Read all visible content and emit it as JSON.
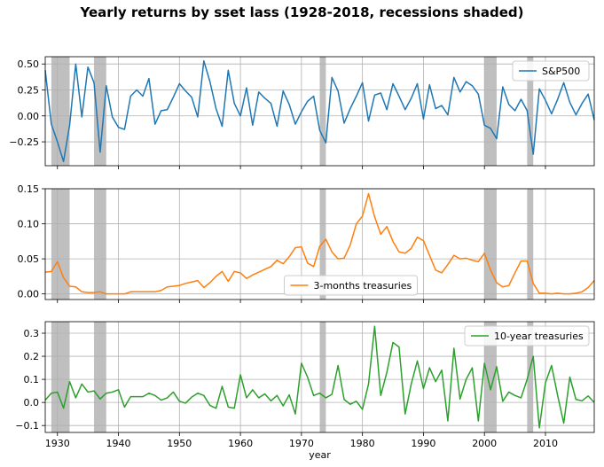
{
  "title": "Yearly returns by sset lass (1928-2018, recessions shaded)",
  "chart_data": {
    "type": "line",
    "title": "Yearly returns by sset lass (1928-2018, recessions shaded)",
    "xlabel": "year",
    "xlim": [
      1928,
      2018
    ],
    "x_ticks": [
      1930,
      1940,
      1950,
      1960,
      1970,
      1980,
      1990,
      2000,
      2010
    ],
    "grid": true,
    "recessions": [
      [
        1929,
        1932
      ],
      [
        1936,
        1938
      ],
      [
        1973,
        1974
      ],
      [
        2000,
        2002
      ],
      [
        2007,
        2008
      ]
    ],
    "recession_color": "#bfbfbf",
    "x": [
      1928,
      1929,
      1930,
      1931,
      1932,
      1933,
      1934,
      1935,
      1936,
      1937,
      1938,
      1939,
      1940,
      1941,
      1942,
      1943,
      1944,
      1945,
      1946,
      1947,
      1948,
      1949,
      1950,
      1951,
      1952,
      1953,
      1954,
      1955,
      1956,
      1957,
      1958,
      1959,
      1960,
      1961,
      1962,
      1963,
      1964,
      1965,
      1966,
      1967,
      1968,
      1969,
      1970,
      1971,
      1972,
      1973,
      1974,
      1975,
      1976,
      1977,
      1978,
      1979,
      1980,
      1981,
      1982,
      1983,
      1984,
      1985,
      1986,
      1987,
      1988,
      1989,
      1990,
      1991,
      1992,
      1993,
      1994,
      1995,
      1996,
      1997,
      1998,
      1999,
      2000,
      2001,
      2002,
      2003,
      2004,
      2005,
      2006,
      2007,
      2008,
      2009,
      2010,
      2011,
      2012,
      2013,
      2014,
      2015,
      2016,
      2017,
      2018
    ],
    "panels": [
      {
        "series": [
          {
            "name": "S&P500",
            "color": "#1f77b4",
            "values": [
              0.44,
              -0.08,
              -0.25,
              -0.44,
              -0.09,
              0.5,
              -0.01,
              0.47,
              0.32,
              -0.35,
              0.29,
              -0.01,
              -0.11,
              -0.13,
              0.19,
              0.25,
              0.19,
              0.36,
              -0.08,
              0.05,
              0.06,
              0.18,
              0.31,
              0.24,
              0.18,
              -0.01,
              0.53,
              0.33,
              0.07,
              -0.1,
              0.44,
              0.12,
              0.0,
              0.27,
              -0.09,
              0.23,
              0.17,
              0.12,
              -0.1,
              0.24,
              0.11,
              -0.08,
              0.04,
              0.14,
              0.19,
              -0.14,
              -0.26,
              0.37,
              0.24,
              -0.07,
              0.07,
              0.19,
              0.32,
              -0.05,
              0.2,
              0.22,
              0.06,
              0.31,
              0.19,
              0.06,
              0.17,
              0.31,
              -0.03,
              0.3,
              0.07,
              0.1,
              0.01,
              0.37,
              0.23,
              0.33,
              0.29,
              0.21,
              -0.09,
              -0.12,
              -0.22,
              0.28,
              0.11,
              0.05,
              0.16,
              0.05,
              -0.37,
              0.26,
              0.15,
              0.02,
              0.16,
              0.32,
              0.13,
              0.01,
              0.12,
              0.21,
              -0.04
            ]
          }
        ],
        "ylim": [
          -0.48,
          0.57
        ],
        "y_ticks": [
          -0.25,
          0.0,
          0.25,
          0.5
        ],
        "y_tick_labels": [
          "−0.25",
          "0.00",
          "0.25",
          "0.50"
        ],
        "legend_position": "top-right"
      },
      {
        "series": [
          {
            "name": "3-months treasuries",
            "color": "#ff7f0e",
            "values": [
              0.031,
              0.032,
              0.046,
              0.023,
              0.011,
              0.01,
              0.003,
              0.002,
              0.002,
              0.003,
              0.0,
              0.0,
              0.0,
              0.0,
              0.003,
              0.003,
              0.003,
              0.003,
              0.003,
              0.005,
              0.01,
              0.011,
              0.012,
              0.015,
              0.017,
              0.019,
              0.009,
              0.016,
              0.025,
              0.032,
              0.018,
              0.032,
              0.03,
              0.022,
              0.027,
              0.031,
              0.035,
              0.039,
              0.048,
              0.043,
              0.053,
              0.066,
              0.067,
              0.044,
              0.039,
              0.068,
              0.078,
              0.06,
              0.05,
              0.051,
              0.07,
              0.1,
              0.111,
              0.143,
              0.11,
              0.085,
              0.096,
              0.075,
              0.06,
              0.058,
              0.065,
              0.081,
              0.076,
              0.055,
              0.034,
              0.03,
              0.042,
              0.055,
              0.05,
              0.051,
              0.048,
              0.046,
              0.058,
              0.034,
              0.016,
              0.01,
              0.012,
              0.03,
              0.047,
              0.047,
              0.015,
              0.001,
              0.001,
              0.0,
              0.001,
              0.0,
              0.0,
              0.001,
              0.003,
              0.009,
              0.019
            ]
          }
        ],
        "ylim": [
          -0.008,
          0.15
        ],
        "y_ticks": [
          0.0,
          0.05,
          0.1,
          0.15
        ],
        "y_tick_labels": [
          "0.00",
          "0.05",
          "0.10",
          "0.15"
        ],
        "legend_position": "bottom-center"
      },
      {
        "series": [
          {
            "name": "10-year treasuries",
            "color": "#2ca02c",
            "values": [
              0.01,
              0.04,
              0.045,
              -0.025,
              0.09,
              0.02,
              0.08,
              0.045,
              0.05,
              0.015,
              0.04,
              0.045,
              0.055,
              -0.02,
              0.025,
              0.025,
              0.025,
              0.04,
              0.03,
              0.01,
              0.02,
              0.045,
              0.005,
              -0.003,
              0.023,
              0.04,
              0.03,
              -0.013,
              -0.025,
              0.07,
              -0.02,
              -0.025,
              0.12,
              0.02,
              0.055,
              0.02,
              0.037,
              0.007,
              0.03,
              -0.015,
              0.033,
              -0.05,
              0.17,
              0.11,
              0.03,
              0.04,
              0.02,
              0.035,
              0.16,
              0.013,
              -0.008,
              0.005,
              -0.03,
              0.08,
              0.33,
              0.03,
              0.13,
              0.26,
              0.24,
              -0.05,
              0.08,
              0.18,
              0.06,
              0.15,
              0.09,
              0.14,
              -0.08,
              0.235,
              0.015,
              0.1,
              0.15,
              -0.08,
              0.17,
              0.055,
              0.155,
              0.005,
              0.045,
              0.03,
              0.02,
              0.1,
              0.2,
              -0.11,
              0.085,
              0.16,
              0.03,
              -0.09,
              0.11,
              0.013,
              0.007,
              0.028,
              0.0
            ]
          }
        ],
        "ylim": [
          -0.13,
          0.35
        ],
        "y_ticks": [
          -0.1,
          0.0,
          0.1,
          0.2,
          0.3
        ],
        "y_tick_labels": [
          "−0.1",
          "0.0",
          "0.1",
          "0.2",
          "0.3"
        ],
        "legend_position": "top-right"
      }
    ]
  }
}
